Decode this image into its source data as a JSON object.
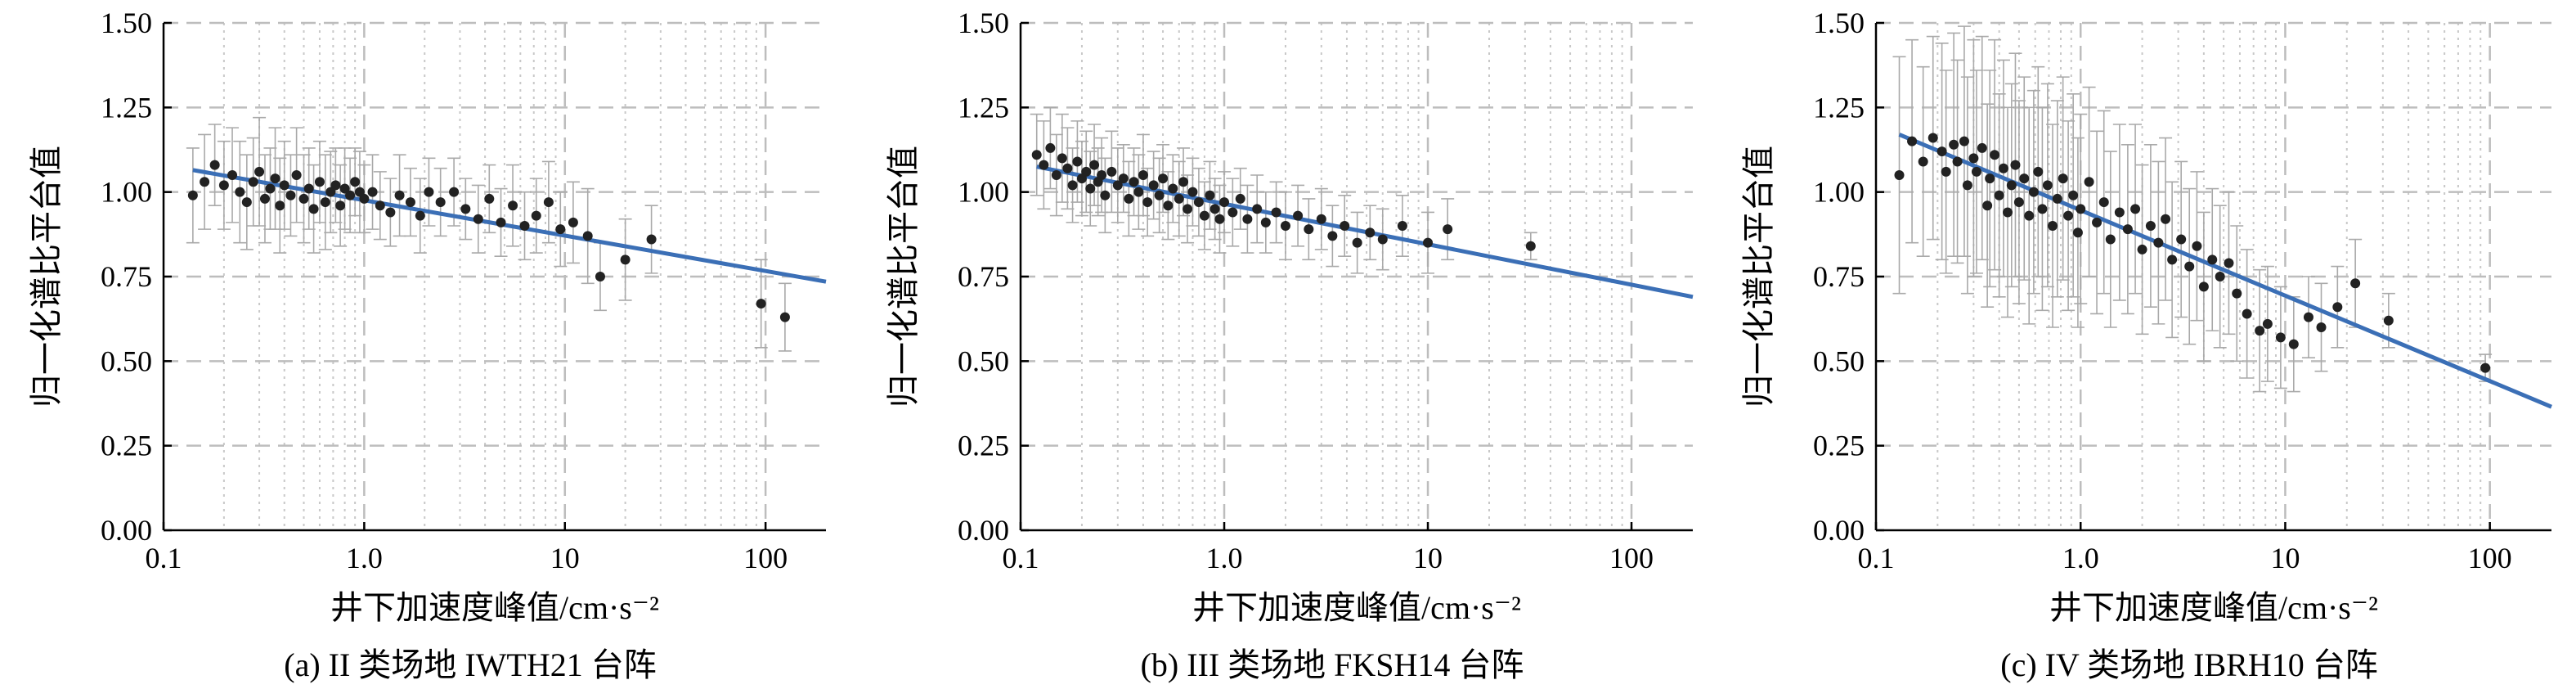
{
  "chart_data": [
    {
      "type": "scatter",
      "caption": "(a) II 类场地 IWTH21 台阵",
      "xlabel": "井下加速度峰值/cm·s⁻²",
      "ylabel": "归一化谱比平台值",
      "x_scale": "log",
      "xlim": [
        0.1,
        200
      ],
      "ylim": [
        0.0,
        1.5
      ],
      "x_ticks": [
        "0.1",
        "1.0",
        "10",
        "100"
      ],
      "y_ticks": [
        "0.00",
        "0.25",
        "0.50",
        "0.75",
        "1.00",
        "1.25",
        "1.50"
      ],
      "grid": true,
      "fit_line": {
        "x": [
          0.14,
          200
        ],
        "y": [
          1.065,
          0.735
        ]
      },
      "points": [
        [
          0.14,
          0.99,
          0.14
        ],
        [
          0.16,
          1.03,
          0.14
        ],
        [
          0.18,
          1.08,
          0.12
        ],
        [
          0.2,
          1.02,
          0.13
        ],
        [
          0.22,
          1.05,
          0.14
        ],
        [
          0.24,
          1.0,
          0.15
        ],
        [
          0.26,
          0.97,
          0.14
        ],
        [
          0.28,
          1.03,
          0.13
        ],
        [
          0.3,
          1.06,
          0.16
        ],
        [
          0.32,
          0.98,
          0.13
        ],
        [
          0.34,
          1.01,
          0.12
        ],
        [
          0.36,
          1.04,
          0.15
        ],
        [
          0.38,
          0.96,
          0.14
        ],
        [
          0.4,
          1.02,
          0.13
        ],
        [
          0.43,
          0.99,
          0.12
        ],
        [
          0.46,
          1.05,
          0.14
        ],
        [
          0.5,
          0.98,
          0.13
        ],
        [
          0.53,
          1.01,
          0.12
        ],
        [
          0.56,
          0.95,
          0.13
        ],
        [
          0.6,
          1.03,
          0.12
        ],
        [
          0.64,
          0.97,
          0.14
        ],
        [
          0.68,
          1.0,
          0.12
        ],
        [
          0.72,
          1.02,
          0.11
        ],
        [
          0.76,
          0.96,
          0.12
        ],
        [
          0.8,
          1.01,
          0.12
        ],
        [
          0.85,
          0.99,
          0.11
        ],
        [
          0.9,
          1.03,
          0.1
        ],
        [
          0.95,
          1.0,
          0.12
        ],
        [
          1.0,
          0.98,
          0.1
        ],
        [
          1.1,
          1.0,
          0.11
        ],
        [
          1.2,
          0.96,
          0.1
        ],
        [
          1.35,
          0.94,
          0.1
        ],
        [
          1.5,
          0.99,
          0.12
        ],
        [
          1.7,
          0.97,
          0.1
        ],
        [
          1.9,
          0.93,
          0.11
        ],
        [
          2.1,
          1.0,
          0.1
        ],
        [
          2.4,
          0.97,
          0.1
        ],
        [
          2.8,
          1.0,
          0.1
        ],
        [
          3.2,
          0.95,
          0.09
        ],
        [
          3.7,
          0.92,
          0.1
        ],
        [
          4.2,
          0.98,
          0.1
        ],
        [
          4.8,
          0.91,
          0.1
        ],
        [
          5.5,
          0.96,
          0.12
        ],
        [
          6.3,
          0.9,
          0.1
        ],
        [
          7.2,
          0.93,
          0.11
        ],
        [
          8.3,
          0.97,
          0.12
        ],
        [
          9.5,
          0.89,
          0.11
        ],
        [
          11,
          0.91,
          0.12
        ],
        [
          13,
          0.87,
          0.14
        ],
        [
          15,
          0.75,
          0.1
        ],
        [
          20,
          0.8,
          0.12
        ],
        [
          27,
          0.86,
          0.1
        ],
        [
          95,
          0.67,
          0.13
        ],
        [
          125,
          0.63,
          0.1
        ]
      ]
    },
    {
      "type": "scatter",
      "caption": "(b) III 类场地 FKSH14 台阵",
      "xlabel": "井下加速度峰值/cm·s⁻²",
      "ylabel": "归一化谱比平台值",
      "x_scale": "log",
      "xlim": [
        0.1,
        200
      ],
      "ylim": [
        0.0,
        1.5
      ],
      "x_ticks": [
        "0.1",
        "1.0",
        "10",
        "100"
      ],
      "y_ticks": [
        "0.00",
        "0.25",
        "0.50",
        "0.75",
        "1.00",
        "1.25",
        "1.50"
      ],
      "grid": true,
      "fit_line": {
        "x": [
          0.12,
          200
        ],
        "y": [
          1.075,
          0.69
        ]
      },
      "points": [
        [
          0.12,
          1.11,
          0.12
        ],
        [
          0.13,
          1.08,
          0.13
        ],
        [
          0.14,
          1.13,
          0.12
        ],
        [
          0.15,
          1.05,
          0.12
        ],
        [
          0.16,
          1.1,
          0.13
        ],
        [
          0.17,
          1.07,
          0.12
        ],
        [
          0.18,
          1.02,
          0.11
        ],
        [
          0.19,
          1.09,
          0.12
        ],
        [
          0.2,
          1.04,
          0.11
        ],
        [
          0.21,
          1.06,
          0.12
        ],
        [
          0.22,
          1.01,
          0.11
        ],
        [
          0.23,
          1.08,
          0.12
        ],
        [
          0.24,
          1.03,
          0.1
        ],
        [
          0.25,
          1.05,
          0.11
        ],
        [
          0.26,
          0.99,
          0.11
        ],
        [
          0.28,
          1.06,
          0.12
        ],
        [
          0.3,
          1.02,
          0.11
        ],
        [
          0.32,
          1.04,
          0.1
        ],
        [
          0.34,
          0.98,
          0.11
        ],
        [
          0.36,
          1.03,
          0.1
        ],
        [
          0.38,
          1.0,
          0.11
        ],
        [
          0.4,
          1.05,
          0.12
        ],
        [
          0.42,
          0.97,
          0.1
        ],
        [
          0.45,
          1.02,
          0.1
        ],
        [
          0.48,
          0.99,
          0.11
        ],
        [
          0.5,
          1.04,
          0.1
        ],
        [
          0.53,
          0.96,
          0.1
        ],
        [
          0.56,
          1.01,
          0.1
        ],
        [
          0.6,
          0.98,
          0.11
        ],
        [
          0.63,
          1.03,
          0.1
        ],
        [
          0.66,
          0.95,
          0.1
        ],
        [
          0.7,
          1.0,
          0.1
        ],
        [
          0.75,
          0.97,
          0.1
        ],
        [
          0.8,
          0.93,
          0.1
        ],
        [
          0.85,
          0.99,
          0.1
        ],
        [
          0.9,
          0.95,
          0.09
        ],
        [
          0.95,
          0.92,
          0.1
        ],
        [
          1.0,
          0.97,
          0.09
        ],
        [
          1.1,
          0.94,
          0.1
        ],
        [
          1.2,
          0.98,
          0.09
        ],
        [
          1.3,
          0.92,
          0.1
        ],
        [
          1.45,
          0.95,
          0.1
        ],
        [
          1.6,
          0.91,
          0.09
        ],
        [
          1.8,
          0.94,
          0.09
        ],
        [
          2.0,
          0.9,
          0.1
        ],
        [
          2.3,
          0.93,
          0.09
        ],
        [
          2.6,
          0.89,
          0.09
        ],
        [
          3.0,
          0.92,
          0.09
        ],
        [
          3.4,
          0.87,
          0.09
        ],
        [
          3.9,
          0.9,
          0.09
        ],
        [
          4.5,
          0.85,
          0.09
        ],
        [
          5.2,
          0.88,
          0.08
        ],
        [
          6.0,
          0.86,
          0.09
        ],
        [
          7.5,
          0.9,
          0.09
        ],
        [
          10,
          0.85,
          0.09
        ],
        [
          12.5,
          0.89,
          0.09
        ],
        [
          32,
          0.84,
          0.04
        ]
      ]
    },
    {
      "type": "scatter",
      "caption": "(c) IV 类场地 IBRH10 台阵",
      "xlabel": "井下加速度峰值/cm·s⁻²",
      "ylabel": "归一化谱比平台值",
      "x_scale": "log",
      "xlim": [
        0.1,
        200
      ],
      "ylim": [
        0.0,
        1.5
      ],
      "x_ticks": [
        "0.1",
        "1.0",
        "10",
        "100"
      ],
      "y_ticks": [
        "0.00",
        "0.25",
        "0.50",
        "0.75",
        "1.00",
        "1.25",
        "1.50"
      ],
      "grid": true,
      "fit_line": {
        "x": [
          0.13,
          200
        ],
        "y": [
          1.17,
          0.365
        ]
      },
      "points": [
        [
          0.13,
          1.05,
          0.35
        ],
        [
          0.15,
          1.15,
          0.3
        ],
        [
          0.17,
          1.09,
          0.28
        ],
        [
          0.19,
          1.16,
          0.3
        ],
        [
          0.21,
          1.12,
          0.32
        ],
        [
          0.22,
          1.06,
          0.3
        ],
        [
          0.24,
          1.14,
          0.33
        ],
        [
          0.25,
          1.09,
          0.3
        ],
        [
          0.27,
          1.15,
          0.34
        ],
        [
          0.28,
          1.02,
          0.32
        ],
        [
          0.3,
          1.1,
          0.35
        ],
        [
          0.31,
          1.06,
          0.3
        ],
        [
          0.33,
          1.13,
          0.33
        ],
        [
          0.35,
          0.96,
          0.3
        ],
        [
          0.36,
          1.04,
          0.32
        ],
        [
          0.38,
          1.11,
          0.34
        ],
        [
          0.4,
          0.99,
          0.3
        ],
        [
          0.42,
          1.07,
          0.32
        ],
        [
          0.44,
          0.94,
          0.31
        ],
        [
          0.46,
          1.02,
          0.3
        ],
        [
          0.48,
          1.08,
          0.33
        ],
        [
          0.5,
          0.97,
          0.3
        ],
        [
          0.53,
          1.04,
          0.3
        ],
        [
          0.56,
          0.93,
          0.32
        ],
        [
          0.59,
          1.0,
          0.3
        ],
        [
          0.62,
          1.06,
          0.31
        ],
        [
          0.65,
          0.95,
          0.3
        ],
        [
          0.69,
          1.02,
          0.3
        ],
        [
          0.73,
          0.9,
          0.3
        ],
        [
          0.77,
          0.98,
          0.29
        ],
        [
          0.82,
          1.04,
          0.3
        ],
        [
          0.87,
          0.93,
          0.28
        ],
        [
          0.92,
          0.99,
          0.3
        ],
        [
          0.97,
          0.88,
          0.28
        ],
        [
          1.0,
          0.95,
          0.28
        ],
        [
          1.1,
          1.03,
          0.28
        ],
        [
          1.2,
          0.91,
          0.27
        ],
        [
          1.3,
          0.97,
          0.27
        ],
        [
          1.4,
          0.86,
          0.26
        ],
        [
          1.55,
          0.94,
          0.26
        ],
        [
          1.7,
          0.89,
          0.25
        ],
        [
          1.85,
          0.95,
          0.25
        ],
        [
          2.0,
          0.83,
          0.25
        ],
        [
          2.2,
          0.9,
          0.24
        ],
        [
          2.4,
          0.85,
          0.24
        ],
        [
          2.6,
          0.92,
          0.24
        ],
        [
          2.8,
          0.8,
          0.23
        ],
        [
          3.1,
          0.86,
          0.23
        ],
        [
          3.4,
          0.78,
          0.23
        ],
        [
          3.7,
          0.84,
          0.22
        ],
        [
          4.0,
          0.72,
          0.22
        ],
        [
          4.4,
          0.8,
          0.21
        ],
        [
          4.8,
          0.75,
          0.21
        ],
        [
          5.3,
          0.79,
          0.21
        ],
        [
          5.8,
          0.7,
          0.2
        ],
        [
          6.5,
          0.64,
          0.19
        ],
        [
          7.5,
          0.59,
          0.18
        ],
        [
          8.2,
          0.61,
          0.17
        ],
        [
          9.5,
          0.57,
          0.15
        ],
        [
          11,
          0.55,
          0.14
        ],
        [
          13,
          0.63,
          0.12
        ],
        [
          15,
          0.6,
          0.13
        ],
        [
          18,
          0.66,
          0.12
        ],
        [
          22,
          0.73,
          0.13
        ],
        [
          32,
          0.62,
          0.08
        ],
        [
          95,
          0.48,
          0.04
        ]
      ]
    }
  ]
}
